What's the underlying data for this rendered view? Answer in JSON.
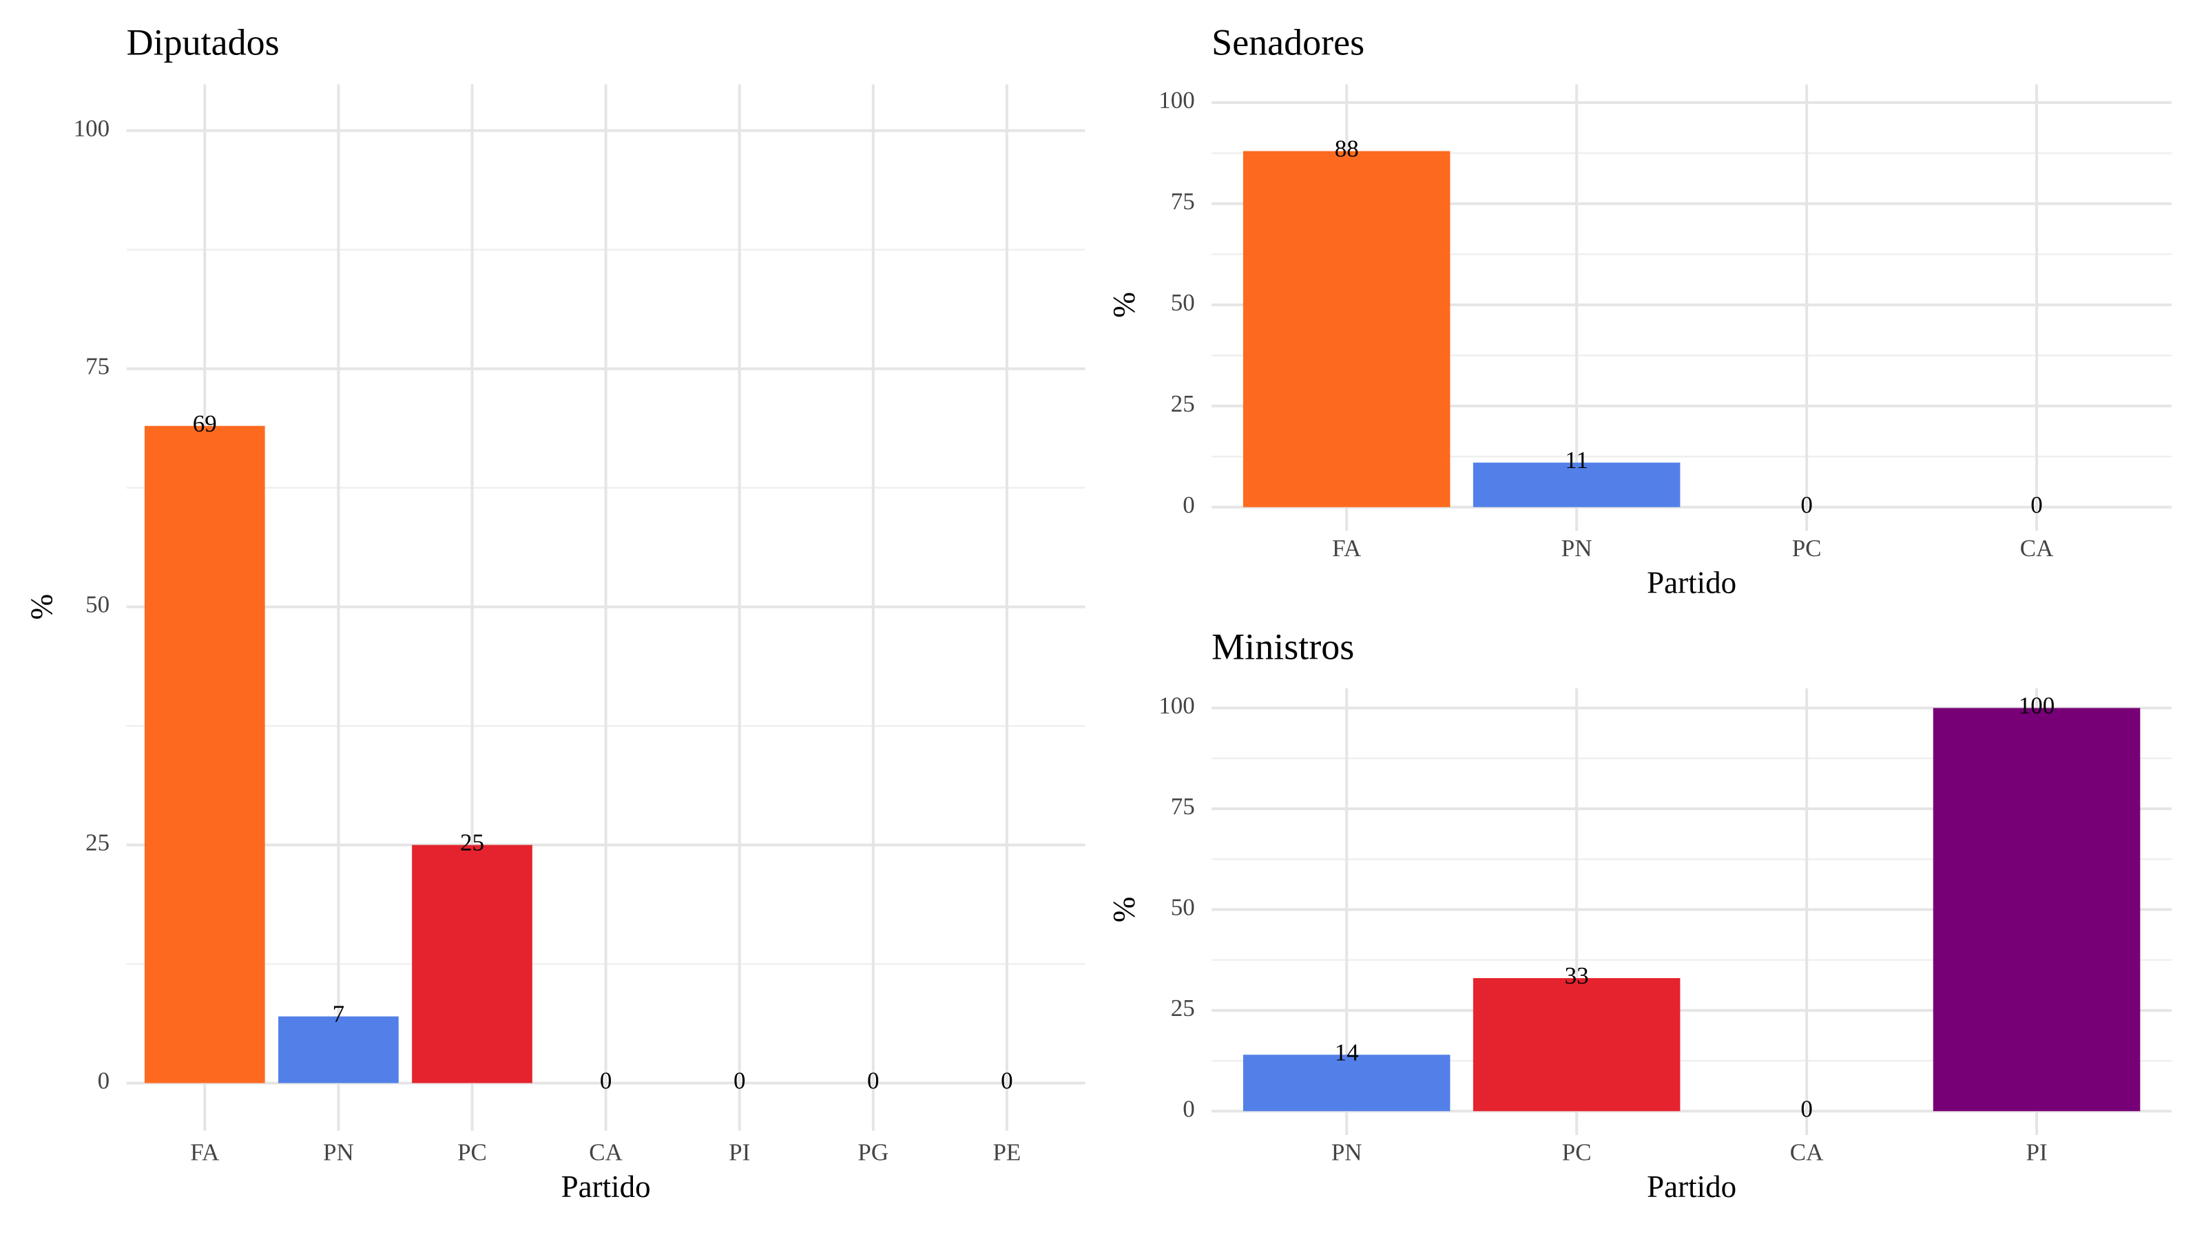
{
  "chart_data": [
    {
      "type": "bar",
      "title": "Diputados",
      "x_label": "Partido",
      "y_label": "%",
      "categories": [
        "FA",
        "PN",
        "PC",
        "CA",
        "PI",
        "PG",
        "PE"
      ],
      "values": [
        69,
        7,
        25,
        0,
        0,
        0,
        0
      ],
      "colors": [
        "#fd6a1f",
        "#5380e8",
        "#e5232e",
        null,
        null,
        null,
        null
      ],
      "ylim": [
        0,
        100
      ],
      "yticks": [
        0,
        25,
        50,
        75,
        100
      ],
      "grid": true
    },
    {
      "type": "bar",
      "title": "Senadores",
      "x_label": "Partido",
      "y_label": "%",
      "categories": [
        "FA",
        "PN",
        "PC",
        "CA"
      ],
      "values": [
        88,
        11,
        0,
        0
      ],
      "colors": [
        "#fd6a1f",
        "#5380e8",
        null,
        null
      ],
      "ylim": [
        0,
        100
      ],
      "yticks": [
        0,
        25,
        50,
        75,
        100
      ],
      "grid": true
    },
    {
      "type": "bar",
      "title": "Ministros",
      "x_label": "Partido",
      "y_label": "%",
      "categories": [
        "PN",
        "PC",
        "CA",
        "PI"
      ],
      "values": [
        14,
        33,
        0,
        100
      ],
      "colors": [
        "#5380e8",
        "#e5232e",
        null,
        "#770077"
      ],
      "ylim": [
        0,
        100
      ],
      "yticks": [
        0,
        25,
        50,
        75,
        100
      ],
      "grid": true
    }
  ]
}
